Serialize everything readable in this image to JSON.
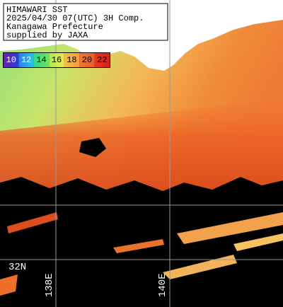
{
  "header": {
    "lines": [
      "HIMAWARI SST",
      "2025/04/30 07(UTC) 3H Comp.",
      "Kanagawa Prefecture",
      "supplied by JAXA"
    ]
  },
  "colorbar": {
    "labels": [
      "10",
      "12",
      "14",
      "16",
      "18",
      "20",
      "22"
    ]
  },
  "grid_labels": {
    "lat": [
      "32N"
    ],
    "lon": [
      "138E",
      "140E"
    ]
  }
}
